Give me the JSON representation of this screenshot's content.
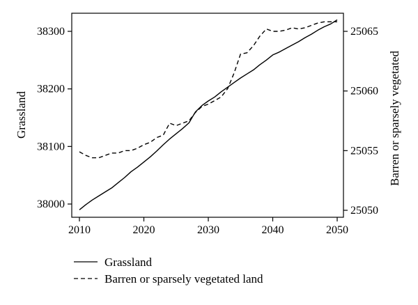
{
  "chart_data": {
    "type": "line",
    "xlim": [
      2010,
      2050
    ],
    "x_ticks": [
      2010,
      2020,
      2030,
      2040,
      2050
    ],
    "y_left": {
      "label": "Grassland",
      "ticks": [
        38000,
        38100,
        38200,
        38300
      ],
      "range": [
        37990,
        38320
      ]
    },
    "y_right": {
      "label": "Barren or sparsely vegetated",
      "ticks": [
        25050,
        25055,
        25060,
        25065
      ],
      "range": [
        25049.7,
        25065.8
      ]
    },
    "grid": false,
    "legend_position": "bottom",
    "series": [
      {
        "name": "Grassland",
        "axis": "left",
        "line_style": "solid",
        "color": "#000000",
        "x": [
          2010,
          2011,
          2012,
          2013,
          2014,
          2015,
          2016,
          2017,
          2018,
          2019,
          2020,
          2021,
          2022,
          2023,
          2024,
          2025,
          2026,
          2027,
          2028,
          2029,
          2030,
          2031,
          2032,
          2033,
          2034,
          2035,
          2036,
          2037,
          2038,
          2039,
          2040,
          2041,
          2042,
          2043,
          2044,
          2045,
          2046,
          2047,
          2048,
          2049,
          2050
        ],
        "y": [
          37990,
          37999,
          38007,
          38014,
          38021,
          38028,
          38037,
          38046,
          38056,
          38064,
          38073,
          38082,
          38092,
          38103,
          38113,
          38122,
          38131,
          38141,
          38160,
          38171,
          38179,
          38186,
          38195,
          38203,
          38211,
          38219,
          38226,
          38233,
          38242,
          38250,
          38259,
          38264,
          38270,
          38276,
          38282,
          38289,
          38295,
          38302,
          38308,
          38313,
          38320
        ]
      },
      {
        "name": "Barren or sparsely vegetated land",
        "axis": "right",
        "line_style": "dashed",
        "color": "#000000",
        "x": [
          2010,
          2011,
          2012,
          2013,
          2014,
          2015,
          2016,
          2017,
          2018,
          2019,
          2020,
          2021,
          2022,
          2023,
          2024,
          2025,
          2026,
          2027,
          2028,
          2029,
          2030,
          2031,
          2032,
          2033,
          2034,
          2035,
          2036,
          2037,
          2038,
          2039,
          2040,
          2041,
          2042,
          2043,
          2044,
          2045,
          2046,
          2047,
          2048,
          2049,
          2050
        ],
        "y": [
          25054.9,
          25054.6,
          25054.4,
          25054.4,
          25054.6,
          25054.8,
          25054.8,
          25055.0,
          25055.0,
          25055.2,
          25055.5,
          25055.7,
          25056.1,
          25056.3,
          25057.3,
          25057.1,
          25057.3,
          25057.5,
          25058.2,
          25058.7,
          25058.9,
          25059.2,
          25059.5,
          25060.2,
          25061.5,
          25063.1,
          25063.2,
          25063.8,
          25064.6,
          25065.2,
          25065.0,
          25065.0,
          25065.1,
          25065.3,
          25065.2,
          25065.3,
          25065.5,
          25065.7,
          25065.8,
          25065.8,
          25065.8
        ]
      }
    ]
  }
}
